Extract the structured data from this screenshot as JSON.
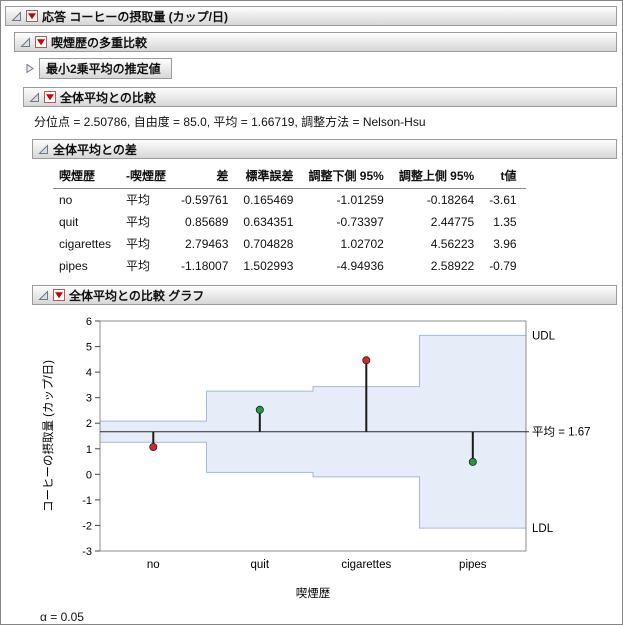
{
  "outlines": {
    "response": {
      "title": "応答 コーヒーの摂取量 (カップ/日)"
    },
    "multi": {
      "title": "喫煙歴の多重比較"
    },
    "lsmeans": {
      "title": "最小2乗平均の推定値"
    },
    "overall": {
      "title": "全体平均との比較"
    },
    "stats_line": "分位点 = 2.50786, 自由度 = 85.0, 平均 = 1.66719, 調整方法 = Nelson-Hsu",
    "diff": {
      "title": "全体平均との差"
    },
    "graph": {
      "title": "全体平均との比較 グラフ"
    }
  },
  "table": {
    "columns": [
      "喫煙歴",
      "-喫煙歴",
      "差",
      "標準誤差",
      "調整下側 95%",
      "調整上側 95%",
      "t値"
    ],
    "rows": [
      [
        "no",
        "平均",
        "-0.59761",
        "0.165469",
        "-1.01259",
        "-0.18264",
        "-3.61"
      ],
      [
        "quit",
        "平均",
        "0.85689",
        "0.634351",
        "-0.73397",
        "2.44775",
        "1.35"
      ],
      [
        "cigarettes",
        "平均",
        "2.79463",
        "0.704828",
        "1.02702",
        "4.56223",
        "3.96"
      ],
      [
        "pipes",
        "平均",
        "-1.18007",
        "1.502993",
        "-4.94936",
        "2.58922",
        "-0.79"
      ]
    ]
  },
  "chart_data": {
    "type": "anom",
    "categories": [
      "no",
      "quit",
      "cigarettes",
      "pipes"
    ],
    "group_means": [
      1.0696,
      2.5241,
      4.4618,
      0.4871
    ],
    "udl": [
      2.0822,
      3.2581,
      3.4348,
      5.4365
    ],
    "ldl": [
      1.2522,
      0.0763,
      -0.1004,
      -2.1021
    ],
    "center": 1.66719,
    "significant": [
      true,
      false,
      true,
      false
    ],
    "ylim": [
      -3,
      6
    ],
    "yticks": [
      -3,
      -2,
      -1,
      0,
      1,
      2,
      3,
      4,
      5,
      6
    ],
    "ylabel": "コーヒーの摂取量 (カップ/日)",
    "xlabel": "喫煙歴",
    "labels": {
      "udl": "UDL",
      "ldl": "LDL",
      "center": "平均 = 1.67"
    },
    "colors": {
      "band_fill": "#e7ecf9",
      "band_line": "#a6b6da",
      "sig_point": "#d42727",
      "nonsig_point": "#1f9a3f",
      "needle": "#1a1a1a",
      "center_line": "#2a2a2a"
    }
  },
  "alpha_label": "α = 0.05"
}
